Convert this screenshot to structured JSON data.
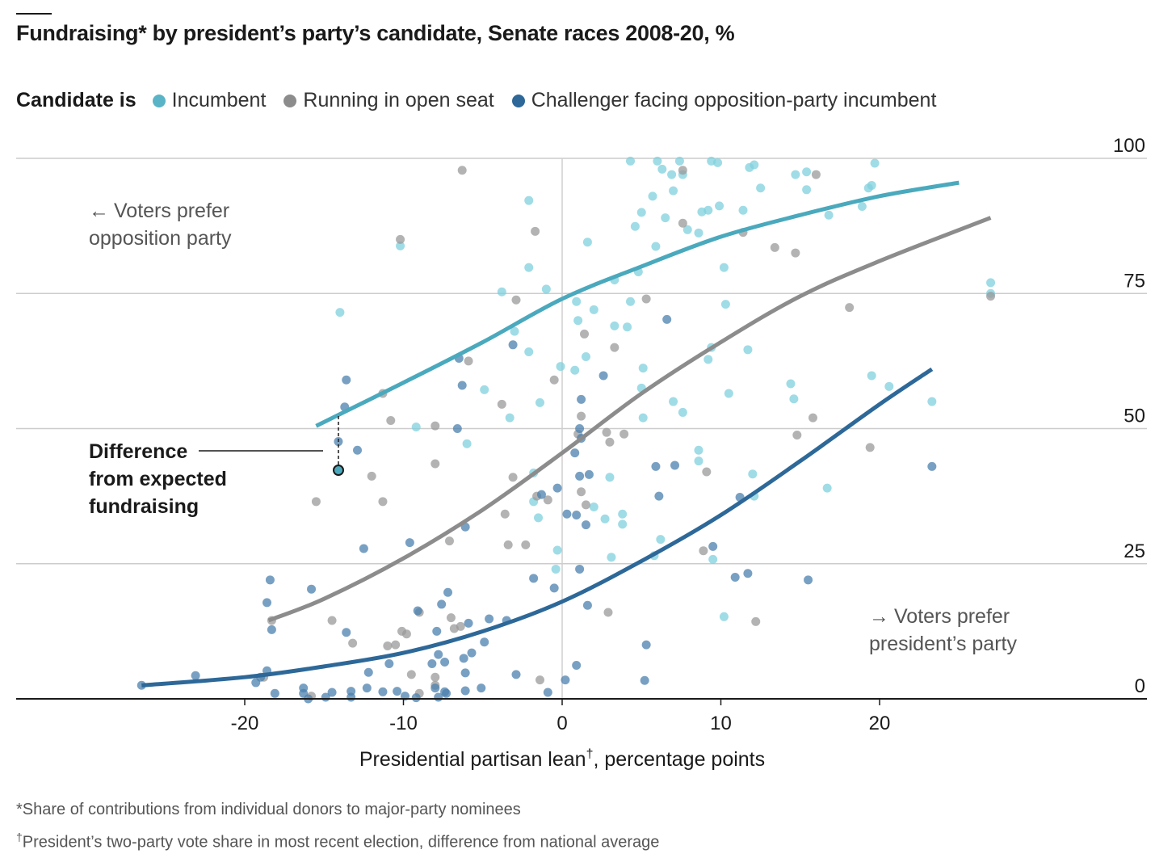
{
  "title": "Fundraising* by president’s party’s candidate, Senate races 2008-20, %",
  "legend": {
    "lead": "Candidate is",
    "items": [
      {
        "key": "incumbent",
        "label": "Incumbent",
        "color": "#4aa9bd"
      },
      {
        "key": "open",
        "label": "Running in open seat",
        "color": "#8c8c8c"
      },
      {
        "key": "challenger",
        "label": "Challenger facing opposition-party incumbent",
        "color": "#2d6898"
      }
    ]
  },
  "annotations": {
    "left_arrow": "←",
    "left_line1": "Voters prefer",
    "left_line2": "opposition party",
    "right_arrow": "→",
    "right_line1": "Voters prefer",
    "right_line2": "president’s party",
    "difference_line1": "Difference",
    "difference_line2": "from expected",
    "difference_line3": "fundraising"
  },
  "footnotes": {
    "note1": "*Share of contributions from individual donors to major-party nominees",
    "note2_mark": "†",
    "note2": "President’s two-party vote share in most recent election, difference from national average"
  },
  "chart_data": {
    "type": "scatter",
    "title": "Fundraising* by president’s party’s candidate, Senate races 2008-20, %",
    "xlabel": "Presidential partisan lean",
    "xlabel_mark": "†",
    "xlabel_suffix": ", percentage points",
    "xlim": [
      -27,
      37
    ],
    "ylim": [
      0,
      100
    ],
    "x_ticks": [
      -20,
      -10,
      0,
      10,
      20
    ],
    "x_tick_labels": [
      "-20",
      "-10",
      "0",
      "10",
      "20"
    ],
    "y_ticks": [
      0,
      25,
      50,
      75,
      100
    ],
    "y_tick_labels": [
      "0",
      "25",
      "50",
      "75",
      "100"
    ],
    "grid": "horizontal",
    "legend_position": "top-left",
    "series": [
      {
        "name": "Incumbent",
        "color": "#4aa9bd",
        "fit": [
          [
            -15.5,
            50.5
          ],
          [
            -10,
            58.5
          ],
          [
            -5,
            66
          ],
          [
            0,
            74
          ],
          [
            5,
            80
          ],
          [
            10,
            85.5
          ],
          [
            15,
            89.5
          ],
          [
            20,
            93
          ],
          [
            25,
            95.5
          ]
        ],
        "points": [
          [
            4.3,
            99.5
          ],
          [
            6,
            99.5
          ],
          [
            7.4,
            99.5
          ],
          [
            9.4,
            99.5
          ],
          [
            9.8,
            99.2
          ],
          [
            12.1,
            98.8
          ],
          [
            11.8,
            98.3
          ],
          [
            6.3,
            98
          ],
          [
            6.9,
            97
          ],
          [
            7.6,
            97
          ],
          [
            15.4,
            97.5
          ],
          [
            14.7,
            97
          ],
          [
            19.7,
            99.1
          ],
          [
            5.7,
            93
          ],
          [
            7,
            94
          ],
          [
            12.5,
            94.5
          ],
          [
            15.4,
            94.2
          ],
          [
            19.5,
            95
          ],
          [
            19.3,
            94.5
          ],
          [
            -2.1,
            92.2
          ],
          [
            5,
            90
          ],
          [
            6.5,
            89
          ],
          [
            8.8,
            90.1
          ],
          [
            9.2,
            90.4
          ],
          [
            9.9,
            91.2
          ],
          [
            11.4,
            90.4
          ],
          [
            16.8,
            89.5
          ],
          [
            18.9,
            91.1
          ],
          [
            4.6,
            87.4
          ],
          [
            7.9,
            86.8
          ],
          [
            8.6,
            86.2
          ],
          [
            -10.2,
            83.8
          ],
          [
            1.6,
            84.5
          ],
          [
            5.9,
            83.7
          ],
          [
            -2.1,
            79.8
          ],
          [
            3.3,
            77.5
          ],
          [
            4.8,
            79
          ],
          [
            10.2,
            79.8
          ],
          [
            -3.8,
            75.3
          ],
          [
            -1,
            75.8
          ],
          [
            0.9,
            73.5
          ],
          [
            2,
            72
          ],
          [
            4.3,
            73.5
          ],
          [
            10.3,
            73
          ],
          [
            -14,
            71.5
          ],
          [
            -3,
            68
          ],
          [
            1,
            70
          ],
          [
            3.3,
            69
          ],
          [
            4.1,
            68.8
          ],
          [
            -2.1,
            64.2
          ],
          [
            1.5,
            63.3
          ],
          [
            9.2,
            62.8
          ],
          [
            9.4,
            65
          ],
          [
            11.7,
            64.6
          ],
          [
            -0.1,
            61.5
          ],
          [
            0.8,
            60.8
          ],
          [
            5.1,
            61.2
          ],
          [
            -4.9,
            57.2
          ],
          [
            10.5,
            56.5
          ],
          [
            14.4,
            58.3
          ],
          [
            19.5,
            59.8
          ],
          [
            20.6,
            57.8
          ],
          [
            -1.4,
            54.8
          ],
          [
            5,
            57.5
          ],
          [
            7,
            55
          ],
          [
            14.6,
            55.5
          ],
          [
            -3.3,
            52
          ],
          [
            5.1,
            52
          ],
          [
            7.6,
            53
          ],
          [
            23.3,
            55
          ],
          [
            -9.2,
            50.3
          ],
          [
            -6,
            47.2
          ],
          [
            8.6,
            46
          ],
          [
            8.6,
            44
          ],
          [
            -1.8,
            41.8
          ],
          [
            3,
            41
          ],
          [
            12,
            41.6
          ],
          [
            16.7,
            39
          ],
          [
            -1.8,
            36.5
          ],
          [
            -1.5,
            33.5
          ],
          [
            2,
            35.5
          ],
          [
            3.8,
            34.2
          ],
          [
            2.7,
            33.3
          ],
          [
            3.8,
            32.3
          ],
          [
            -0.3,
            27.5
          ],
          [
            3.1,
            26.2
          ],
          [
            5.8,
            26.5
          ],
          [
            6.2,
            29.5
          ],
          [
            -0.4,
            24
          ],
          [
            9.5,
            25.8
          ],
          [
            10.2,
            15.2
          ],
          [
            12.1,
            37.5
          ],
          [
            27,
            77
          ],
          [
            27,
            75
          ]
        ]
      },
      {
        "name": "Running in open seat",
        "color": "#8c8c8c",
        "fit": [
          [
            -18.5,
            14.5
          ],
          [
            -15,
            18.5
          ],
          [
            -10,
            26
          ],
          [
            -5,
            35
          ],
          [
            0,
            45.5
          ],
          [
            5,
            56.5
          ],
          [
            10,
            66
          ],
          [
            15,
            74.5
          ],
          [
            20,
            81
          ],
          [
            27,
            89
          ]
        ],
        "points": [
          [
            -6.3,
            97.8
          ],
          [
            7.6,
            97.8
          ],
          [
            16,
            97
          ],
          [
            -10.2,
            85
          ],
          [
            -1.7,
            86.5
          ],
          [
            7.6,
            88
          ],
          [
            11.4,
            86.3
          ],
          [
            13.4,
            83.5
          ],
          [
            14.7,
            82.5
          ],
          [
            -2.9,
            73.8
          ],
          [
            5.3,
            74
          ],
          [
            18.1,
            72.4
          ],
          [
            27,
            74.5
          ],
          [
            1.4,
            67.5
          ],
          [
            3.3,
            65
          ],
          [
            -5.9,
            62.5
          ],
          [
            -0.5,
            59
          ],
          [
            1.2,
            52.3
          ],
          [
            -11.3,
            56.5
          ],
          [
            -3.8,
            54.5
          ],
          [
            -10.8,
            51.5
          ],
          [
            -8,
            50.5
          ],
          [
            2.8,
            49.3
          ],
          [
            3.9,
            49
          ],
          [
            1,
            49
          ],
          [
            15.8,
            52
          ],
          [
            14.8,
            48.8
          ],
          [
            3,
            47.5
          ],
          [
            19.4,
            46.5
          ],
          [
            -8,
            43.5
          ],
          [
            9.1,
            42
          ],
          [
            -12,
            41.2
          ],
          [
            -3.1,
            41
          ],
          [
            1.2,
            38.3
          ],
          [
            -15.5,
            36.5
          ],
          [
            -11.3,
            36.5
          ],
          [
            -0.9,
            36.8
          ],
          [
            -1.6,
            37.5
          ],
          [
            1.5,
            35.9
          ],
          [
            -3.6,
            34.2
          ],
          [
            -3.4,
            28.5
          ],
          [
            -2.3,
            28.5
          ],
          [
            8.9,
            27.4
          ],
          [
            -7.1,
            29.2
          ],
          [
            -9,
            16
          ],
          [
            -18.3,
            14.5
          ],
          [
            -14.5,
            14.5
          ],
          [
            -13.2,
            10.3
          ],
          [
            -10.1,
            12.5
          ],
          [
            -6.8,
            13
          ],
          [
            -6.4,
            13.4
          ],
          [
            -11,
            9.8
          ],
          [
            -10.5,
            10
          ],
          [
            -9.8,
            12
          ],
          [
            -7,
            15
          ],
          [
            2.9,
            16
          ],
          [
            12.2,
            14.3
          ],
          [
            -18.8,
            4
          ],
          [
            -9.5,
            4.5
          ],
          [
            -8,
            4
          ],
          [
            -15.8,
            0.5
          ],
          [
            -9,
            1
          ],
          [
            -8,
            2.5
          ],
          [
            -1.4,
            3.5
          ]
        ]
      },
      {
        "name": "Challenger facing opposition-party incumbent",
        "color": "#2d6898",
        "fit": [
          [
            -26.5,
            2.5
          ],
          [
            -20,
            4
          ],
          [
            -15,
            6
          ],
          [
            -10,
            8.5
          ],
          [
            -5,
            12.5
          ],
          [
            0,
            18
          ],
          [
            5,
            25.5
          ],
          [
            10,
            34
          ],
          [
            15,
            44
          ],
          [
            20,
            54.5
          ],
          [
            23.3,
            61
          ]
        ],
        "points": [
          [
            -13.6,
            59
          ],
          [
            -6.3,
            58
          ],
          [
            -6.5,
            63
          ],
          [
            -3.1,
            65.5
          ],
          [
            2.6,
            59.8
          ],
          [
            6.6,
            70.2
          ],
          [
            -13.7,
            54
          ],
          [
            -14.1,
            47.6
          ],
          [
            -12.9,
            46
          ],
          [
            1.1,
            50
          ],
          [
            1.2,
            48.2
          ],
          [
            1.2,
            55.4
          ],
          [
            -6.6,
            50
          ],
          [
            0.8,
            45.5
          ],
          [
            5.9,
            43
          ],
          [
            7.1,
            43.2
          ],
          [
            11.2,
            37.3
          ],
          [
            -12.5,
            27.8
          ],
          [
            -0.3,
            39
          ],
          [
            1.1,
            41.2
          ],
          [
            1.7,
            41.5
          ],
          [
            -1.3,
            37.8
          ],
          [
            0.9,
            34
          ],
          [
            1.5,
            32.2
          ],
          [
            0.3,
            34.2
          ],
          [
            6.1,
            37.5
          ],
          [
            -6.1,
            31.8
          ],
          [
            -9.6,
            28.9
          ],
          [
            9.5,
            28.2
          ],
          [
            11.7,
            23.2
          ],
          [
            -18.4,
            22
          ],
          [
            -15.8,
            20.3
          ],
          [
            -18.6,
            17.8
          ],
          [
            -9.1,
            16.3
          ],
          [
            -7.2,
            19.7
          ],
          [
            -7.6,
            17.5
          ],
          [
            -4.6,
            14.8
          ],
          [
            -3.5,
            14.5
          ],
          [
            -1.8,
            22.3
          ],
          [
            -0.5,
            20.5
          ],
          [
            1.6,
            17.3
          ],
          [
            1.1,
            24
          ],
          [
            10.9,
            22.5
          ],
          [
            15.5,
            22
          ],
          [
            -18.3,
            12.8
          ],
          [
            -13.6,
            12.3
          ],
          [
            -7.9,
            12.5
          ],
          [
            -5.9,
            14
          ],
          [
            -4.9,
            10.5
          ],
          [
            -5.7,
            8.5
          ],
          [
            -7.8,
            8.2
          ],
          [
            -7.4,
            6.8
          ],
          [
            -6.2,
            7.5
          ],
          [
            -6.1,
            4.8
          ],
          [
            -8.2,
            6.5
          ],
          [
            -10.9,
            6.5
          ],
          [
            -12.2,
            4.9
          ],
          [
            -18.6,
            5.2
          ],
          [
            -19,
            4
          ],
          [
            -23.1,
            4.3
          ],
          [
            -26.5,
            2.5
          ],
          [
            -19.3,
            3
          ],
          [
            -16.3,
            2
          ],
          [
            -12.3,
            2
          ],
          [
            -8,
            2
          ],
          [
            -5.1,
            2
          ],
          [
            -2.9,
            4.5
          ],
          [
            0.2,
            3.5
          ],
          [
            0.9,
            6.2
          ],
          [
            5.3,
            10
          ],
          [
            5.2,
            3.4
          ],
          [
            -18.1,
            1
          ],
          [
            -16.3,
            1
          ],
          [
            -16,
            0
          ],
          [
            -14.5,
            1.2
          ],
          [
            -13.3,
            1.4
          ],
          [
            -11.3,
            1.3
          ],
          [
            -10.4,
            1.4
          ],
          [
            -7.3,
            1
          ],
          [
            -7.4,
            1.3
          ],
          [
            -6.1,
            1.5
          ],
          [
            -9.9,
            0.5
          ],
          [
            -9.2,
            0.2
          ],
          [
            -7.8,
            0.3
          ],
          [
            -13.3,
            0.3
          ],
          [
            -14.9,
            0.3
          ],
          [
            -0.9,
            1.2
          ],
          [
            23.3,
            43
          ]
        ]
      }
    ]
  }
}
